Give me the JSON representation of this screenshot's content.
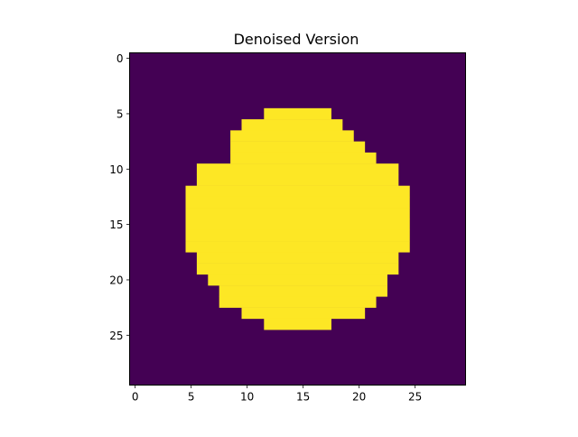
{
  "chart_data": {
    "type": "heatmap",
    "title": "Denoised Version",
    "xlabel": "",
    "ylabel": "",
    "rows": 30,
    "cols": 30,
    "xlim": [
      -0.5,
      29.5
    ],
    "ylim": [
      29.5,
      -0.5
    ],
    "x_ticks": [
      0,
      5,
      10,
      15,
      20,
      25
    ],
    "y_ticks": [
      0,
      5,
      10,
      15,
      20,
      25
    ],
    "x_tick_labels": [
      "0",
      "5",
      "10",
      "15",
      "20",
      "25"
    ],
    "y_tick_labels": [
      "0",
      "5",
      "10",
      "15",
      "20",
      "25"
    ],
    "colormap": "viridis",
    "colors": {
      "low": "#440154",
      "high": "#fde725"
    },
    "grid": false,
    "legend": "none",
    "value_range": [
      0,
      1
    ],
    "foreground_row_spans": [
      {
        "row": 5,
        "start": 12,
        "end": 17
      },
      {
        "row": 6,
        "start": 10,
        "end": 18
      },
      {
        "row": 7,
        "start": 9,
        "end": 19
      },
      {
        "row": 8,
        "start": 9,
        "end": 20
      },
      {
        "row": 9,
        "start": 9,
        "end": 21
      },
      {
        "row": 10,
        "start": 6,
        "end": 23
      },
      {
        "row": 11,
        "start": 6,
        "end": 23
      },
      {
        "row": 12,
        "start": 5,
        "end": 24
      },
      {
        "row": 13,
        "start": 5,
        "end": 24
      },
      {
        "row": 14,
        "start": 5,
        "end": 24
      },
      {
        "row": 15,
        "start": 5,
        "end": 24
      },
      {
        "row": 16,
        "start": 5,
        "end": 24
      },
      {
        "row": 17,
        "start": 5,
        "end": 24
      },
      {
        "row": 18,
        "start": 6,
        "end": 23
      },
      {
        "row": 19,
        "start": 6,
        "end": 23
      },
      {
        "row": 20,
        "start": 7,
        "end": 22
      },
      {
        "row": 21,
        "start": 8,
        "end": 22
      },
      {
        "row": 22,
        "start": 8,
        "end": 21
      },
      {
        "row": 23,
        "start": 10,
        "end": 20
      },
      {
        "row": 24,
        "start": 12,
        "end": 17
      }
    ]
  }
}
